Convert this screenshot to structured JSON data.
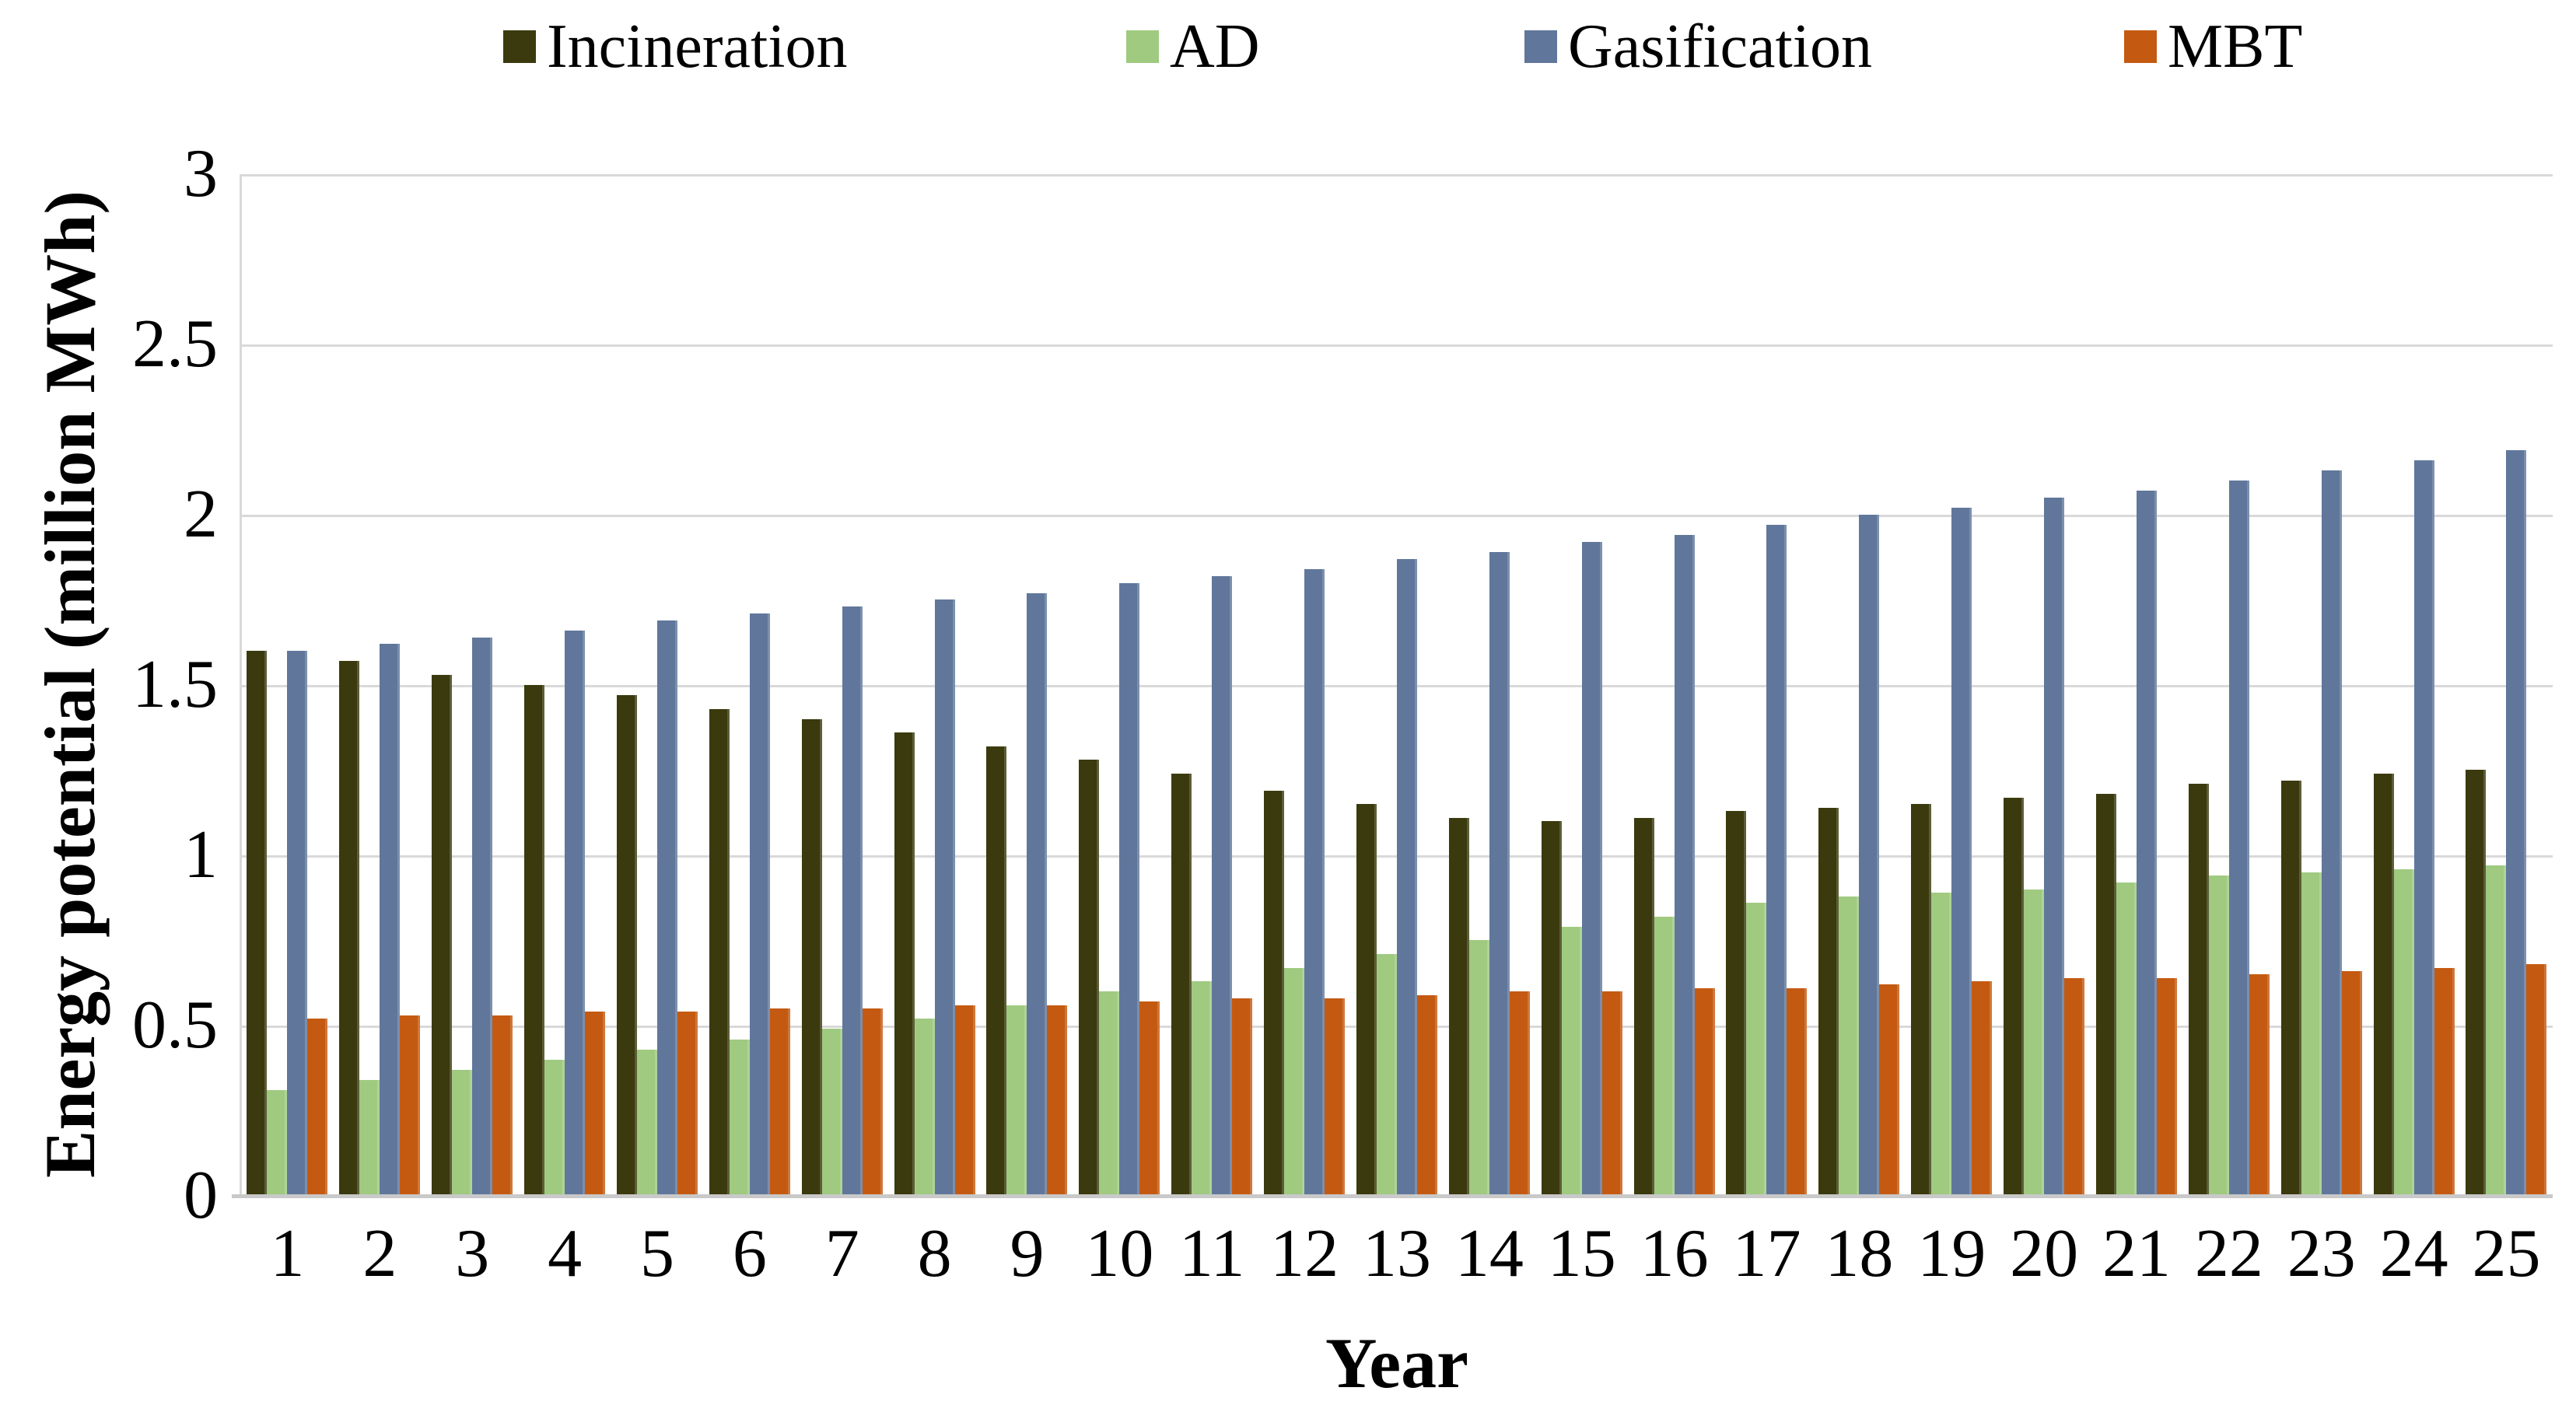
{
  "chart_data": {
    "type": "bar",
    "title": "",
    "xlabel": "Year",
    "ylabel": "Energy potential (million MWh)",
    "categories": [
      "1",
      "2",
      "3",
      "4",
      "5",
      "6",
      "7",
      "8",
      "9",
      "10",
      "11",
      "12",
      "13",
      "14",
      "15",
      "16",
      "17",
      "18",
      "19",
      "20",
      "21",
      "22",
      "23",
      "24",
      "25"
    ],
    "series": [
      {
        "name": "Incineration",
        "color": "#3a3a0e",
        "values": [
          1.6,
          1.57,
          1.53,
          1.5,
          1.47,
          1.43,
          1.4,
          1.36,
          1.32,
          1.28,
          1.24,
          1.19,
          1.15,
          1.11,
          1.1,
          1.11,
          1.13,
          1.14,
          1.15,
          1.17,
          1.18,
          1.21,
          1.22,
          1.24,
          1.25
        ]
      },
      {
        "name": "AD",
        "color": "#9fca80",
        "values": [
          0.31,
          0.34,
          0.37,
          0.4,
          0.43,
          0.46,
          0.49,
          0.52,
          0.56,
          0.6,
          0.63,
          0.67,
          0.71,
          0.75,
          0.79,
          0.82,
          0.86,
          0.88,
          0.89,
          0.9,
          0.92,
          0.94,
          0.95,
          0.96,
          0.97
        ]
      },
      {
        "name": "Gasification",
        "color": "#60779b",
        "values": [
          1.6,
          1.62,
          1.64,
          1.66,
          1.69,
          1.71,
          1.73,
          1.75,
          1.77,
          1.8,
          1.82,
          1.84,
          1.87,
          1.89,
          1.92,
          1.94,
          1.97,
          2.0,
          2.02,
          2.05,
          2.07,
          2.1,
          2.13,
          2.16,
          2.19
        ]
      },
      {
        "name": "MBT",
        "color": "#c45a11",
        "values": [
          0.52,
          0.53,
          0.53,
          0.54,
          0.54,
          0.55,
          0.55,
          0.56,
          0.56,
          0.57,
          0.58,
          0.58,
          0.59,
          0.6,
          0.6,
          0.61,
          0.61,
          0.62,
          0.63,
          0.64,
          0.64,
          0.65,
          0.66,
          0.67,
          0.68
        ]
      }
    ],
    "ylim": [
      0,
      3
    ],
    "ytick_step": 0.5,
    "yticks": [
      "0",
      "0.5",
      "1",
      "1.5",
      "2",
      "2.5",
      "3"
    ],
    "grid": true,
    "legend_position": "top",
    "gridline_color": "#d9d9d9",
    "axis_line_color": "#c9c9c9"
  }
}
